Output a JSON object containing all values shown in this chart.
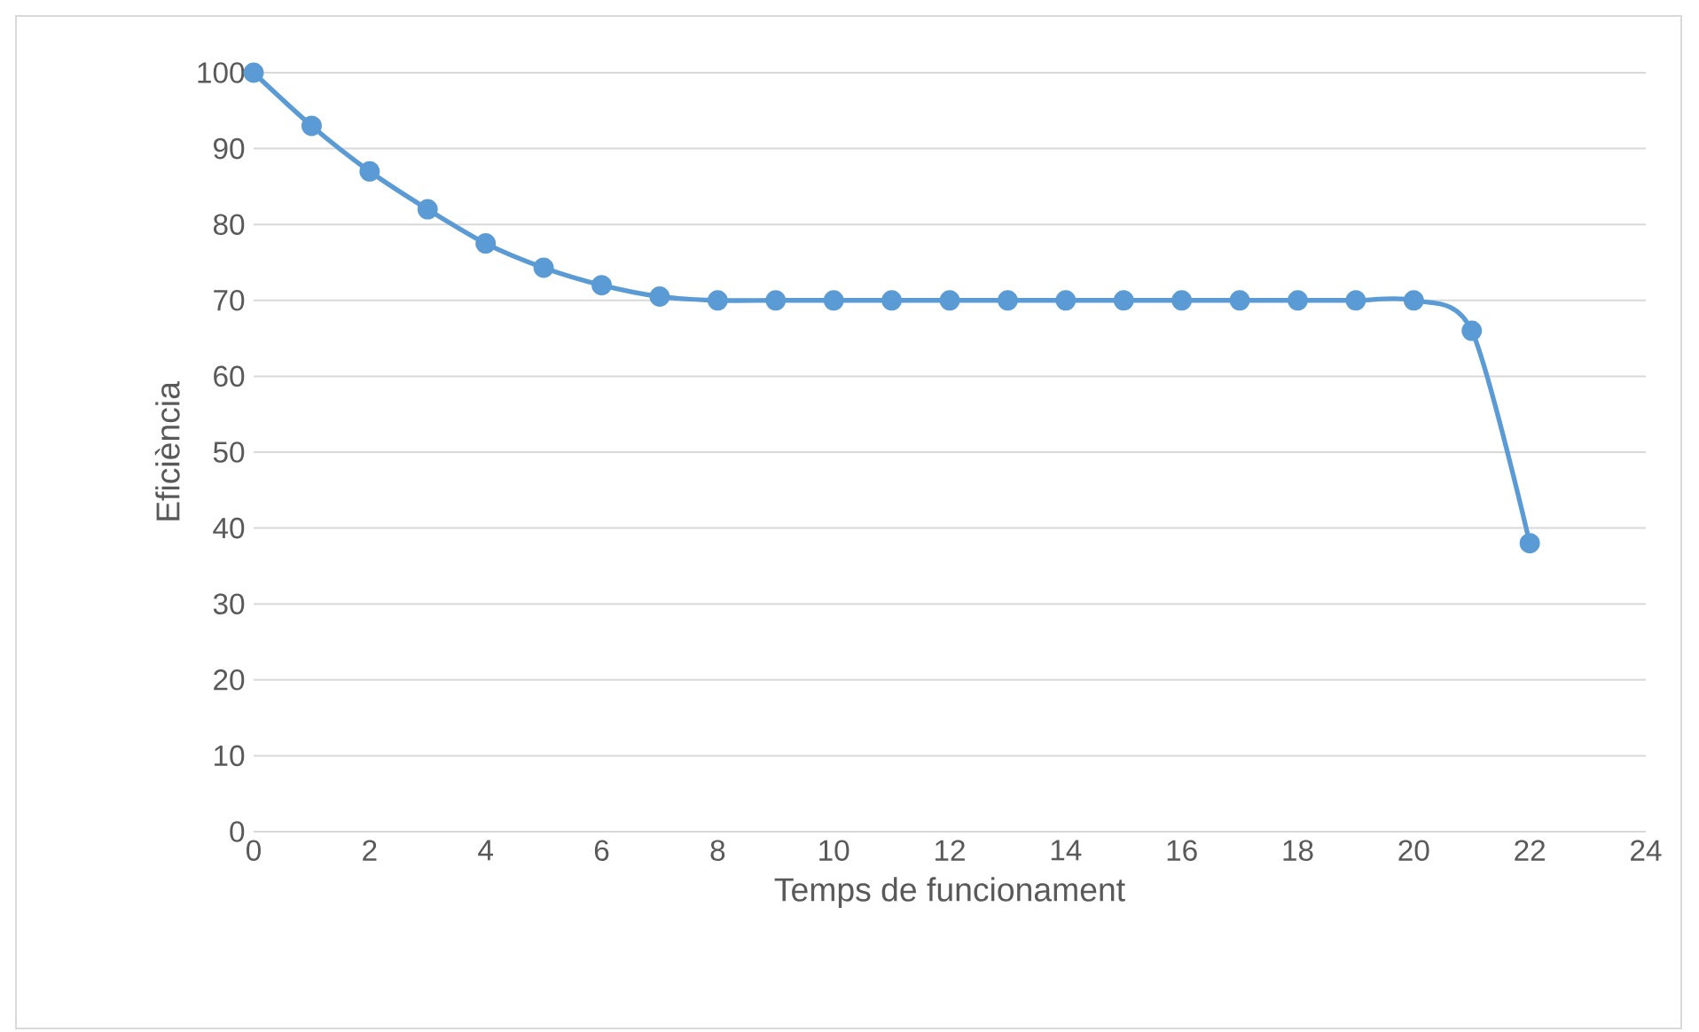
{
  "chart_data": {
    "type": "line",
    "xlabel": "Temps de funcionament",
    "ylabel": "Eficiència",
    "x": [
      0,
      1,
      2,
      3,
      4,
      5,
      6,
      7,
      8,
      9,
      10,
      11,
      12,
      13,
      14,
      15,
      16,
      17,
      18,
      19,
      20,
      21,
      22
    ],
    "values": [
      100,
      93,
      87,
      82,
      77.5,
      74.3,
      72,
      70.5,
      70,
      70,
      70,
      70,
      70,
      70,
      70,
      70,
      70,
      70,
      70,
      70,
      70,
      66,
      38
    ],
    "color": "#5b9bd5",
    "marker": "circle",
    "line_style": "solid",
    "xlim": [
      0,
      24
    ],
    "ylim": [
      0,
      100
    ],
    "xticks": [
      0,
      2,
      4,
      6,
      8,
      10,
      12,
      14,
      16,
      18,
      20,
      22,
      24
    ],
    "yticks": [
      0,
      10,
      20,
      30,
      40,
      50,
      60,
      70,
      80,
      90,
      100
    ],
    "grid": "y"
  }
}
